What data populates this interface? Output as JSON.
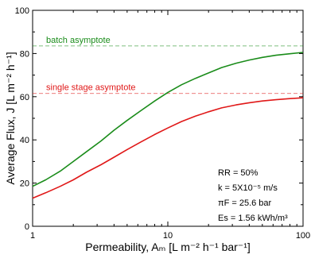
{
  "chart_data": {
    "type": "line",
    "title": "",
    "xlabel": "Permeability, Aₘ  [L m⁻² h⁻¹ bar⁻¹]",
    "ylabel": "Average Flux, J [L m⁻² h⁻¹]",
    "xscale": "log",
    "xlim": [
      1,
      100
    ],
    "ylim": [
      0,
      100
    ],
    "xticks": [
      1,
      10,
      100
    ],
    "yticks": [
      0,
      20,
      40,
      60,
      80,
      100
    ],
    "grid": false,
    "series": [
      {
        "name": "batch",
        "color": "#1a8c1a",
        "x": [
          1,
          1.25,
          1.6,
          2,
          2.5,
          3.2,
          4,
          5,
          6.3,
          8,
          10,
          12.6,
          16,
          20,
          25,
          32,
          40,
          50,
          63,
          80,
          100
        ],
        "y": [
          18.5,
          21.5,
          25.5,
          30,
          34.5,
          39.5,
          44.5,
          49,
          53.5,
          58,
          62,
          65.5,
          68.5,
          71,
          73.5,
          75.5,
          77,
          78.2,
          79.2,
          79.9,
          80.5
        ]
      },
      {
        "name": "single stage",
        "color": "#e01818",
        "x": [
          1,
          1.25,
          1.6,
          2,
          2.5,
          3.2,
          4,
          5,
          6.3,
          8,
          10,
          12.6,
          16,
          20,
          25,
          32,
          40,
          50,
          63,
          80,
          100
        ],
        "y": [
          13,
          15.5,
          18.5,
          21.5,
          25,
          28.5,
          32,
          35.5,
          39,
          42.5,
          45.5,
          48.5,
          51,
          53,
          54.8,
          56.2,
          57.2,
          58,
          58.6,
          59.1,
          59.5
        ]
      }
    ],
    "asymptotes": [
      {
        "label": "batch asymptote",
        "y": 83.5,
        "color": "#1a8c1a"
      },
      {
        "label": "single stage asymptote",
        "y": 61.5,
        "color": "#e01818"
      }
    ],
    "parameters": [
      "RR = 50%",
      "k = 5X10⁻⁵ m/s",
      "πF = 25.6 bar",
      "Es = 1.56 kWh/m³"
    ]
  }
}
